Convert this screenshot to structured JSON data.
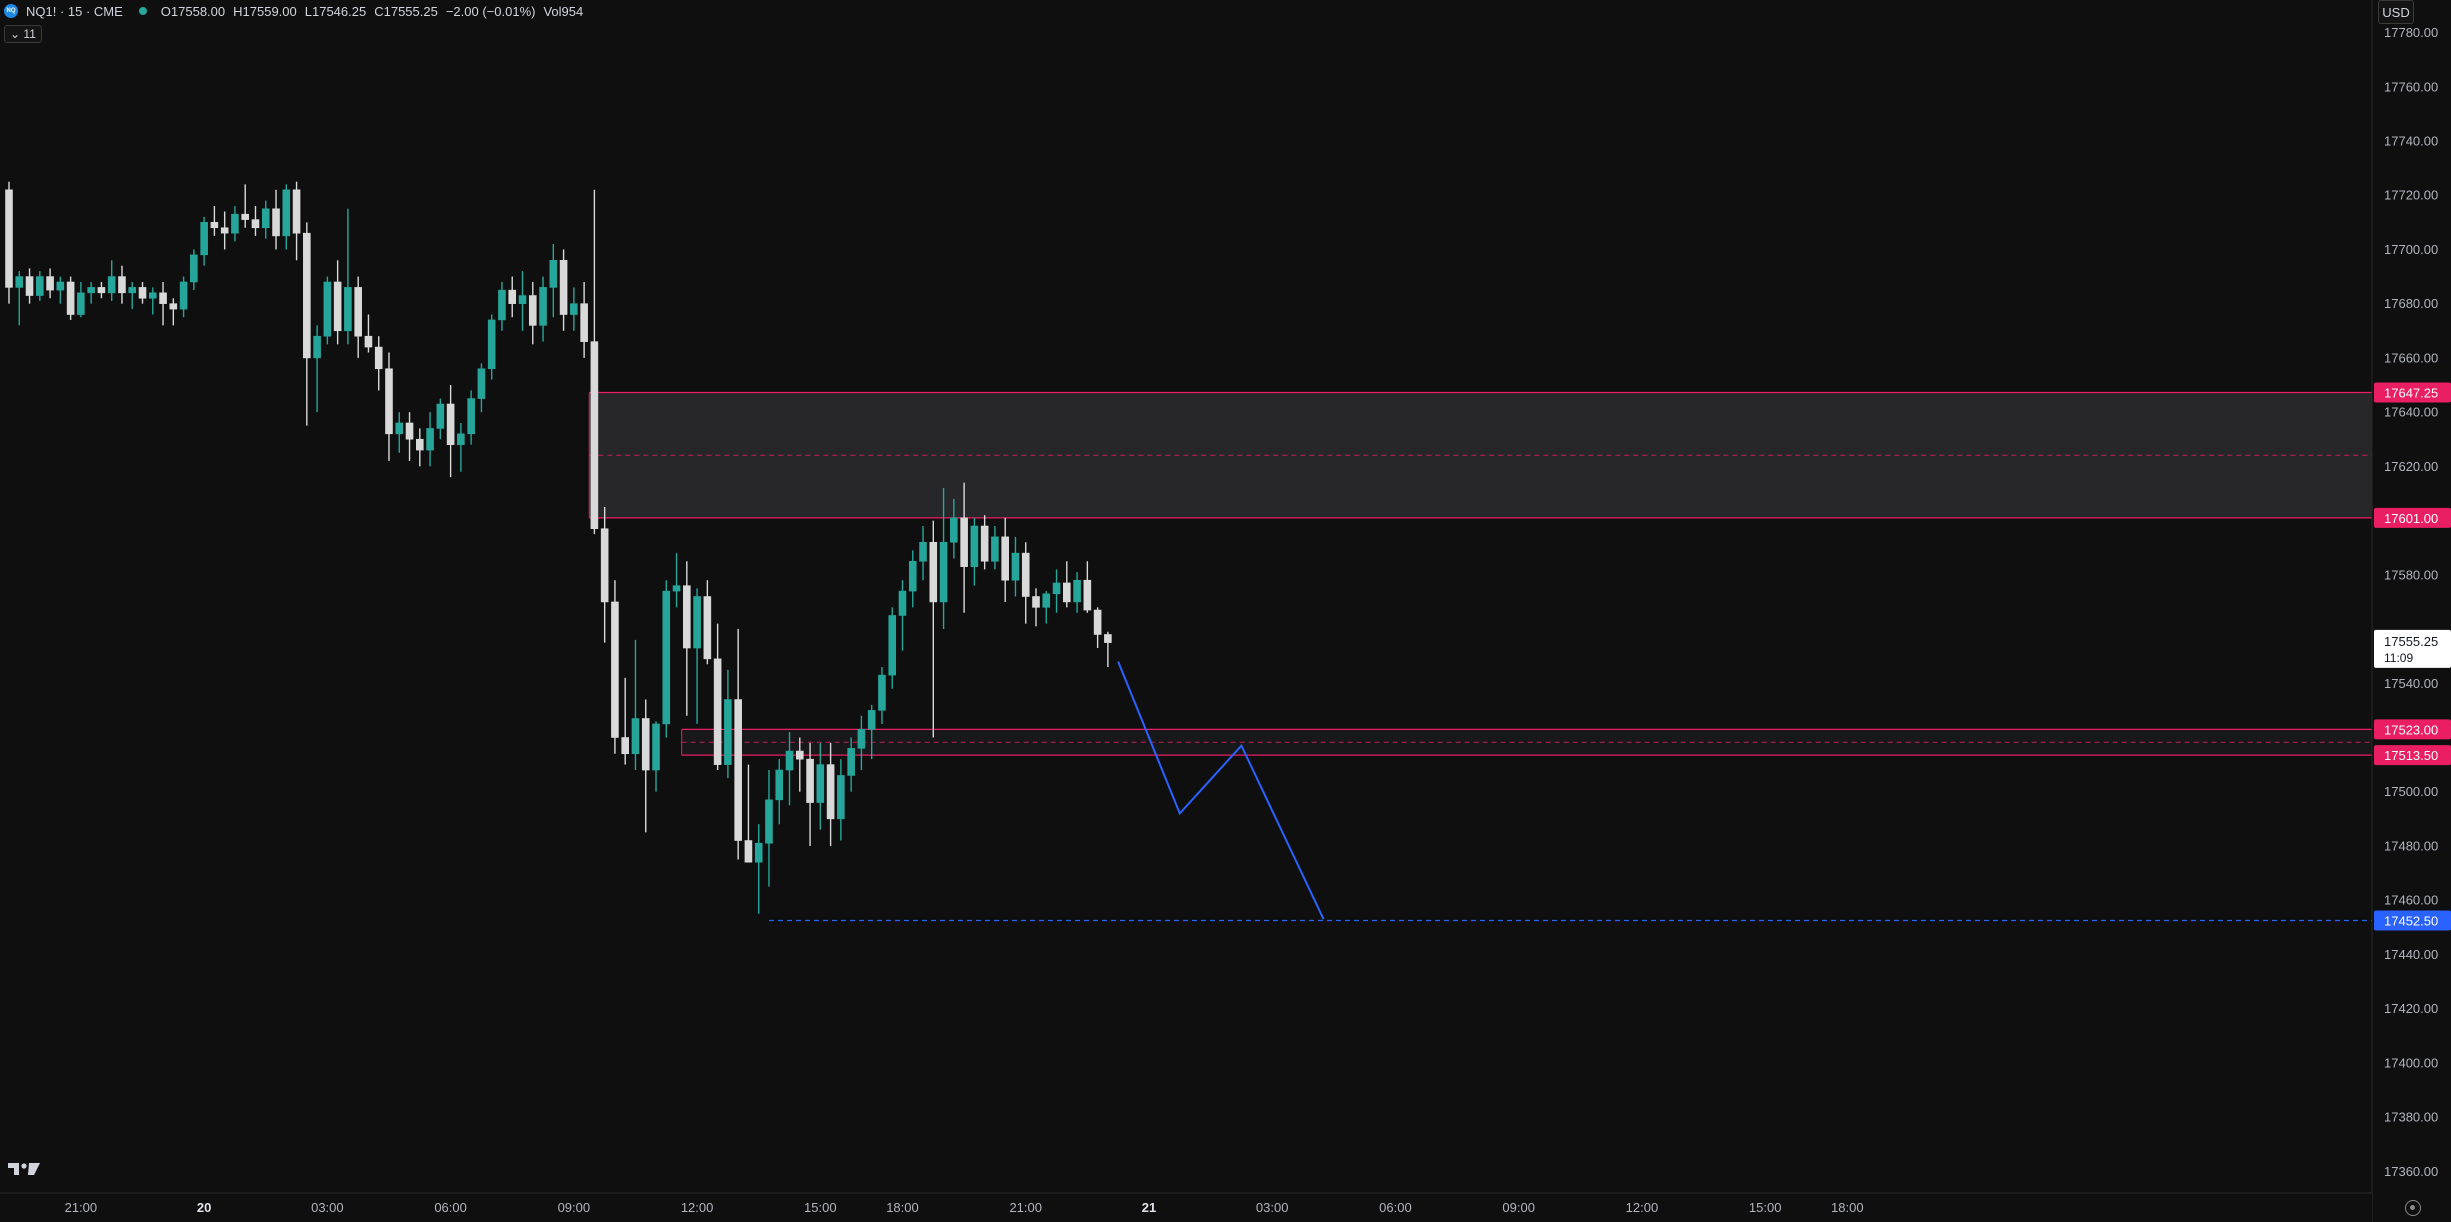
{
  "legend": {
    "symbol_icon": "NQ",
    "symbol": "NQ1! · 15 · CME",
    "open": "O17558.00",
    "high": "H17559.00",
    "low": "L17546.25",
    "close": "C17555.25",
    "change": "−2.00 (−0.01%)",
    "volume": "Vol954",
    "indicator_count": "11"
  },
  "currency": "USD",
  "colors": {
    "background": "#0f0f0f",
    "bull": "#26a69a",
    "bear": "#d9d9d9",
    "zone": "#e91e63",
    "projection": "#2962ff"
  },
  "chart_data": {
    "type": "candlestick",
    "symbol": "NQ1!",
    "interval": "15",
    "exchange": "CME",
    "y_axis": {
      "min": 17352,
      "max": 17792,
      "tick_step": 20,
      "ticks": [
        17780,
        17760,
        17740,
        17720,
        17700,
        17680,
        17660,
        17640,
        17620,
        17580,
        17540,
        17500,
        17480,
        17460,
        17440,
        17420,
        17400,
        17380,
        17360
      ]
    },
    "x_axis": {
      "ticks": [
        {
          "bar": 7,
          "label": "21:00"
        },
        {
          "bar": 19,
          "label": "20"
        },
        {
          "bar": 31,
          "label": "03:00"
        },
        {
          "bar": 43,
          "label": "06:00"
        },
        {
          "bar": 55,
          "label": "09:00"
        },
        {
          "bar": 67,
          "label": "12:00"
        },
        {
          "bar": 79,
          "label": "15:00"
        },
        {
          "bar": 87,
          "label": "18:00"
        },
        {
          "bar": 99,
          "label": "21:00"
        },
        {
          "bar": 111,
          "label": "21"
        },
        {
          "bar": 123,
          "label": "03:00"
        },
        {
          "bar": 135,
          "label": "06:00"
        },
        {
          "bar": 147,
          "label": "09:00"
        },
        {
          "bar": 159,
          "label": "12:00"
        },
        {
          "bar": 171,
          "label": "15:00"
        },
        {
          "bar": 179,
          "label": "18:00"
        }
      ]
    },
    "candles": [
      [
        17722,
        17725,
        17680,
        17686
      ],
      [
        17686,
        17692,
        17672,
        17690
      ],
      [
        17690,
        17693,
        17680,
        17683
      ],
      [
        17683,
        17692,
        17681,
        17690
      ],
      [
        17690,
        17693,
        17682,
        17685
      ],
      [
        17685,
        17690,
        17680,
        17688
      ],
      [
        17688,
        17690,
        17674,
        17676
      ],
      [
        17676,
        17688,
        17675,
        17684
      ],
      [
        17684,
        17688,
        17680,
        17686
      ],
      [
        17686,
        17688,
        17682,
        17684
      ],
      [
        17684,
        17696,
        17681,
        17690
      ],
      [
        17690,
        17694,
        17680,
        17684
      ],
      [
        17684,
        17688,
        17678,
        17686
      ],
      [
        17686,
        17688,
        17680,
        17682
      ],
      [
        17682,
        17686,
        17676,
        17684
      ],
      [
        17684,
        17688,
        17672,
        17680
      ],
      [
        17680,
        17682,
        17672,
        17678
      ],
      [
        17678,
        17690,
        17675,
        17688
      ],
      [
        17688,
        17700,
        17685,
        17698
      ],
      [
        17698,
        17712,
        17694,
        17710
      ],
      [
        17710,
        17716,
        17705,
        17708
      ],
      [
        17708,
        17714,
        17700,
        17706
      ],
      [
        17706,
        17716,
        17703,
        17713
      ],
      [
        17713,
        17724,
        17708,
        17711
      ],
      [
        17711,
        17716,
        17705,
        17708
      ],
      [
        17708,
        17718,
        17704,
        17715
      ],
      [
        17715,
        17722,
        17700,
        17705
      ],
      [
        17705,
        17724,
        17700,
        17722
      ],
      [
        17722,
        17725,
        17696,
        17706
      ],
      [
        17706,
        17710,
        17635,
        17660
      ],
      [
        17660,
        17672,
        17640,
        17668
      ],
      [
        17668,
        17690,
        17665,
        17688
      ],
      [
        17688,
        17696,
        17665,
        17670
      ],
      [
        17670,
        17715,
        17665,
        17686
      ],
      [
        17686,
        17690,
        17660,
        17668
      ],
      [
        17668,
        17676,
        17662,
        17664
      ],
      [
        17664,
        17668,
        17648,
        17656
      ],
      [
        17656,
        17662,
        17622,
        17632
      ],
      [
        17632,
        17640,
        17625,
        17636
      ],
      [
        17636,
        17640,
        17622,
        17630
      ],
      [
        17630,
        17634,
        17620,
        17626
      ],
      [
        17626,
        17640,
        17620,
        17634
      ],
      [
        17634,
        17645,
        17630,
        17643
      ],
      [
        17643,
        17650,
        17616,
        17628
      ],
      [
        17628,
        17636,
        17618,
        17632
      ],
      [
        17632,
        17648,
        17628,
        17645
      ],
      [
        17645,
        17658,
        17640,
        17656
      ],
      [
        17656,
        17676,
        17652,
        17674
      ],
      [
        17674,
        17688,
        17670,
        17685
      ],
      [
        17685,
        17690,
        17675,
        17680
      ],
      [
        17680,
        17692,
        17670,
        17683
      ],
      [
        17683,
        17688,
        17665,
        17672
      ],
      [
        17672,
        17690,
        17666,
        17686
      ],
      [
        17686,
        17702,
        17675,
        17696
      ],
      [
        17696,
        17700,
        17670,
        17676
      ],
      [
        17676,
        17686,
        17670,
        17680
      ],
      [
        17680,
        17688,
        17660,
        17666
      ],
      [
        17666,
        17722,
        17595,
        17597
      ],
      [
        17597,
        17605,
        17555,
        17570
      ],
      [
        17570,
        17578,
        17514,
        17520
      ],
      [
        17520,
        17542,
        17510,
        17514
      ],
      [
        17514,
        17556,
        17508,
        17527
      ],
      [
        17527,
        17534,
        17485,
        17508
      ],
      [
        17508,
        17526,
        17500,
        17525
      ],
      [
        17525,
        17578,
        17520,
        17574
      ],
      [
        17574,
        17588,
        17568,
        17576
      ],
      [
        17576,
        17585,
        17528,
        17553
      ],
      [
        17553,
        17575,
        17525,
        17572
      ],
      [
        17572,
        17578,
        17547,
        17549
      ],
      [
        17549,
        17562,
        17508,
        17510
      ],
      [
        17510,
        17545,
        17505,
        17534
      ],
      [
        17534,
        17560,
        17475,
        17482
      ],
      [
        17482,
        17510,
        17475,
        17474
      ],
      [
        17474,
        17488,
        17455,
        17481
      ],
      [
        17481,
        17508,
        17465,
        17497
      ],
      [
        17497,
        17512,
        17488,
        17508
      ],
      [
        17508,
        17522,
        17495,
        17515
      ],
      [
        17515,
        17520,
        17500,
        17512
      ],
      [
        17512,
        17518,
        17480,
        17496
      ],
      [
        17496,
        17518,
        17486,
        17510
      ],
      [
        17510,
        17518,
        17480,
        17490
      ],
      [
        17490,
        17512,
        17482,
        17506
      ],
      [
        17506,
        17520,
        17500,
        17516
      ],
      [
        17516,
        17528,
        17508,
        17523
      ],
      [
        17523,
        17532,
        17512,
        17530
      ],
      [
        17530,
        17546,
        17525,
        17543
      ],
      [
        17543,
        17568,
        17538,
        17565
      ],
      [
        17565,
        17578,
        17552,
        17574
      ],
      [
        17574,
        17589,
        17568,
        17585
      ],
      [
        17585,
        17598,
        17578,
        17592
      ],
      [
        17592,
        17600,
        17520,
        17570
      ],
      [
        17570,
        17612,
        17560,
        17592
      ],
      [
        17592,
        17608,
        17586,
        17601
      ],
      [
        17601,
        17614,
        17566,
        17583
      ],
      [
        17583,
        17601,
        17576,
        17598
      ],
      [
        17598,
        17602,
        17582,
        17585
      ],
      [
        17585,
        17598,
        17582,
        17594
      ],
      [
        17594,
        17601,
        17570,
        17578
      ],
      [
        17578,
        17594,
        17572,
        17588
      ],
      [
        17588,
        17592,
        17562,
        17572
      ],
      [
        17572,
        17575,
        17561,
        17568
      ],
      [
        17568,
        17574,
        17562,
        17573
      ],
      [
        17573,
        17582,
        17566,
        17577
      ],
      [
        17577,
        17585,
        17568,
        17570
      ],
      [
        17570,
        17581,
        17566,
        17578
      ],
      [
        17578,
        17585,
        17566,
        17567
      ],
      [
        17567,
        17568,
        17553,
        17558
      ],
      [
        17558,
        17559,
        17546,
        17555
      ]
    ],
    "zones": [
      {
        "top": 17647.25,
        "bottom": 17601.0,
        "mid": 17624.1,
        "start_bar": 57,
        "fill": "#2a2a2e",
        "color": "#e91e63"
      },
      {
        "top": 17523.0,
        "bottom": 17513.5,
        "mid": 17518.25,
        "start_bar": 66,
        "fill": "#1a1a1d",
        "color": "#e91e63"
      }
    ],
    "level_lines": [
      {
        "price": 17452.5,
        "start_bar": 74,
        "style": "dashed",
        "color": "#2962ff"
      }
    ],
    "price_labels": [
      {
        "price": 17647.25,
        "text": "17647.25",
        "bg": "#e91e63",
        "fg": "#ffffff"
      },
      {
        "price": 17601.0,
        "text": "17601.00",
        "bg": "#e91e63",
        "fg": "#ffffff"
      },
      {
        "price": 17523.0,
        "text": "17523.00",
        "bg": "#e91e63",
        "fg": "#ffffff"
      },
      {
        "price": 17513.5,
        "text": "17513.50",
        "bg": "#e91e63",
        "fg": "#ffffff"
      },
      {
        "price": 17452.5,
        "text": "17452.50",
        "bg": "#2962ff",
        "fg": "#ffffff"
      }
    ],
    "current_price": {
      "price": 17555.25,
      "text": "17555.25",
      "countdown": "11:09"
    },
    "projection": {
      "color": "#2962ff",
      "points": [
        [
          108,
          17548
        ],
        [
          114,
          17492
        ],
        [
          120,
          17517
        ],
        [
          128,
          17453
        ]
      ]
    }
  }
}
